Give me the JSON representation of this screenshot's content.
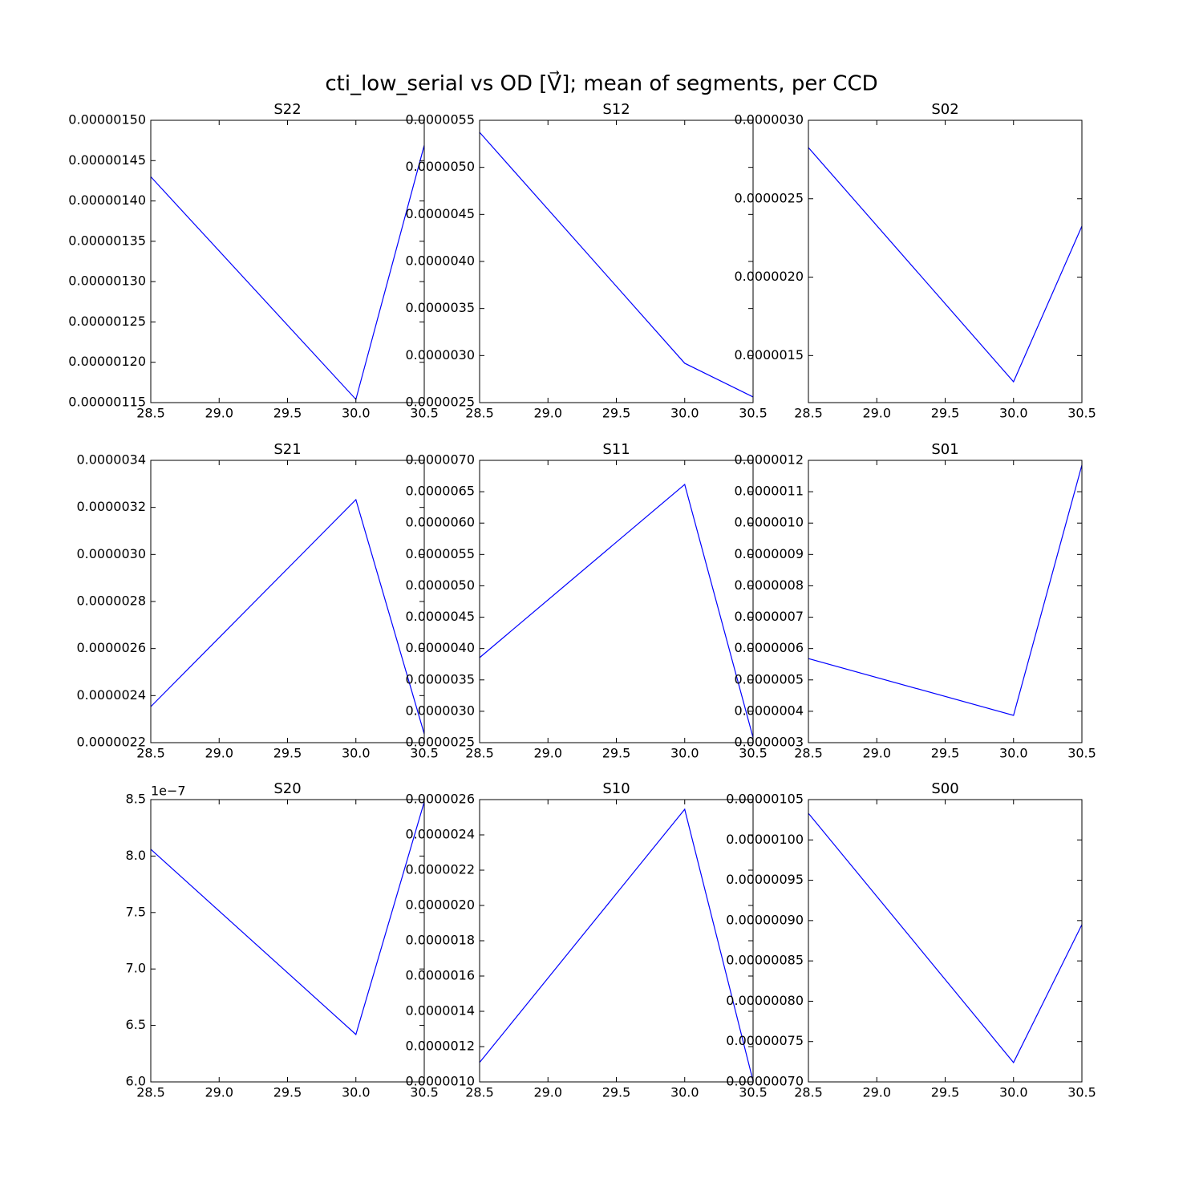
{
  "title": "cti_low_serial vs OD [V⃗]; mean of segments, per CCD",
  "chart_data": [
    {
      "type": "line",
      "title": "S22",
      "x": [
        28.5,
        30.0,
        30.5
      ],
      "series": [
        {
          "color": "#0000ff",
          "values": [
            1.43e-06,
            1.154e-06,
            1.469e-06
          ]
        }
      ],
      "xlim": [
        28.5,
        30.5
      ],
      "ylim": [
        1.15e-06,
        1.5e-06
      ],
      "xticks": [
        28.5,
        {
          "value": 29,
          "label": "29.0"
        },
        29.5,
        {
          "value": 30,
          "label": "30.0"
        },
        30.5
      ],
      "yticks": [
        {
          "value": 1.15e-06,
          "label": "0.00000115"
        },
        {
          "value": 1.2e-06,
          "label": "0.00000120"
        },
        {
          "value": 1.25e-06,
          "label": "0.00000125"
        },
        {
          "value": 1.3e-06,
          "label": "0.00000130"
        },
        {
          "value": 1.35e-06,
          "label": "0.00000135"
        },
        {
          "value": 1.4e-06,
          "label": "0.00000140"
        },
        {
          "value": 1.45e-06,
          "label": "0.00000145"
        },
        {
          "value": 1.5e-06,
          "label": "0.00000150"
        }
      ]
    },
    {
      "type": "line",
      "title": "S12",
      "x": [
        28.5,
        30.0,
        30.5
      ],
      "series": [
        {
          "color": "#0000ff",
          "values": [
            5.372e-06,
            2.918e-06,
            2.56e-06
          ]
        }
      ],
      "xlim": [
        28.5,
        30.5
      ],
      "ylim": [
        2.5e-06,
        5.5e-06
      ],
      "xticks": [
        28.5,
        {
          "value": 29,
          "label": "29.0"
        },
        29.5,
        {
          "value": 30,
          "label": "30.0"
        },
        30.5
      ],
      "yticks": [
        {
          "value": 2.5e-06,
          "label": "0.0000025"
        },
        {
          "value": 3e-06,
          "label": "0.0000030"
        },
        {
          "value": 3.5e-06,
          "label": "0.0000035"
        },
        {
          "value": 4e-06,
          "label": "0.0000040"
        },
        {
          "value": 4.5e-06,
          "label": "0.0000045"
        },
        {
          "value": 5e-06,
          "label": "0.0000050"
        },
        {
          "value": 5.5e-06,
          "label": "0.0000055"
        }
      ]
    },
    {
      "type": "line",
      "title": "S02",
      "x": [
        28.5,
        30.0,
        30.5
      ],
      "series": [
        {
          "color": "#0000ff",
          "values": [
            2.826e-06,
            1.333e-06,
            2.325e-06
          ]
        }
      ],
      "xlim": [
        28.5,
        30.5
      ],
      "ylim": [
        1.2e-06,
        3e-06
      ],
      "xticks": [
        28.5,
        {
          "value": 29,
          "label": "29.0"
        },
        29.5,
        {
          "value": 30,
          "label": "30.0"
        },
        30.5
      ],
      "yticks": [
        {
          "value": 1.5e-06,
          "label": "0.0000015"
        },
        {
          "value": 2e-06,
          "label": "0.0000020"
        },
        {
          "value": 2.5e-06,
          "label": "0.0000025"
        },
        {
          "value": 3e-06,
          "label": "0.0000030"
        }
      ]
    },
    {
      "type": "line",
      "title": "S21",
      "x": [
        28.5,
        30.0,
        30.5
      ],
      "series": [
        {
          "color": "#0000ff",
          "values": [
            2.353e-06,
            3.233e-06,
            2.237e-06
          ]
        }
      ],
      "xlim": [
        28.5,
        30.5
      ],
      "ylim": [
        2.2e-06,
        3.4e-06
      ],
      "xticks": [
        28.5,
        {
          "value": 29,
          "label": "29.0"
        },
        29.5,
        {
          "value": 30,
          "label": "30.0"
        },
        30.5
      ],
      "yticks": [
        {
          "value": 2.2e-06,
          "label": "0.0000022"
        },
        {
          "value": 2.4e-06,
          "label": "0.0000024"
        },
        {
          "value": 2.6e-06,
          "label": "0.0000026"
        },
        {
          "value": 2.8e-06,
          "label": "0.0000028"
        },
        {
          "value": 3e-06,
          "label": "0.0000030"
        },
        {
          "value": 3.2e-06,
          "label": "0.0000032"
        },
        {
          "value": 3.4e-06,
          "label": "0.0000034"
        }
      ]
    },
    {
      "type": "line",
      "title": "S11",
      "x": [
        28.5,
        30.0,
        30.5
      ],
      "series": [
        {
          "color": "#0000ff",
          "values": [
            3.855e-06,
            6.616e-06,
            2.58e-06
          ]
        }
      ],
      "xlim": [
        28.5,
        30.5
      ],
      "ylim": [
        2.5e-06,
        7e-06
      ],
      "xticks": [
        28.5,
        {
          "value": 29,
          "label": "29.0"
        },
        29.5,
        {
          "value": 30,
          "label": "30.0"
        },
        30.5
      ],
      "yticks": [
        {
          "value": 2.5e-06,
          "label": "0.0000025"
        },
        {
          "value": 3e-06,
          "label": "0.0000030"
        },
        {
          "value": 3.5e-06,
          "label": "0.0000035"
        },
        {
          "value": 4e-06,
          "label": "0.0000040"
        },
        {
          "value": 4.5e-06,
          "label": "0.0000045"
        },
        {
          "value": 5e-06,
          "label": "0.0000050"
        },
        {
          "value": 5.5e-06,
          "label": "0.0000055"
        },
        {
          "value": 6e-06,
          "label": "0.0000060"
        },
        {
          "value": 6.5e-06,
          "label": "0.0000065"
        },
        {
          "value": 7e-06,
          "label": "0.0000070"
        }
      ]
    },
    {
      "type": "line",
      "title": "S01",
      "x": [
        28.5,
        30.0,
        30.5
      ],
      "series": [
        {
          "color": "#0000ff",
          "values": [
            5.68e-07,
            3.87e-07,
            1.185e-06
          ]
        }
      ],
      "xlim": [
        28.5,
        30.5
      ],
      "ylim": [
        3e-07,
        1.2e-06
      ],
      "xticks": [
        28.5,
        {
          "value": 29,
          "label": "29.0"
        },
        29.5,
        {
          "value": 30,
          "label": "30.0"
        },
        30.5
      ],
      "yticks": [
        {
          "value": 3e-07,
          "label": "0.0000003"
        },
        {
          "value": 4e-07,
          "label": "0.0000004"
        },
        {
          "value": 5e-07,
          "label": "0.0000005"
        },
        {
          "value": 6e-07,
          "label": "0.0000006"
        },
        {
          "value": 7e-07,
          "label": "0.0000007"
        },
        {
          "value": 8e-07,
          "label": "0.0000008"
        },
        {
          "value": 9e-07,
          "label": "0.0000009"
        },
        {
          "value": 1e-06,
          "label": "0.0000010"
        },
        {
          "value": 1.1e-06,
          "label": "0.0000011"
        },
        {
          "value": 1.2e-06,
          "label": "0.0000012"
        }
      ]
    },
    {
      "type": "line",
      "title": "S20",
      "x": [
        28.5,
        30.0,
        30.5
      ],
      "offset_label": "1e−7",
      "series": [
        {
          "color": "#0000ff",
          "values": [
            8.06,
            6.42,
            8.48
          ]
        }
      ],
      "xlim": [
        28.5,
        30.5
      ],
      "ylim": [
        6,
        8.5
      ],
      "xticks": [
        28.5,
        {
          "value": 29,
          "label": "29.0"
        },
        29.5,
        {
          "value": 30,
          "label": "30.0"
        },
        30.5
      ],
      "yticks": [
        {
          "value": 6,
          "label": "6.0"
        },
        6.5,
        {
          "value": 7,
          "label": "7.0"
        },
        7.5,
        {
          "value": 8,
          "label": "8.0"
        },
        8.5
      ]
    },
    {
      "type": "line",
      "title": "S10",
      "x": [
        28.5,
        30.0,
        30.5
      ],
      "series": [
        {
          "color": "#0000ff",
          "values": [
            1.11e-06,
            2.545e-06,
            1.005e-06
          ]
        }
      ],
      "xlim": [
        28.5,
        30.5
      ],
      "ylim": [
        1e-06,
        2.6e-06
      ],
      "xticks": [
        28.5,
        {
          "value": 29,
          "label": "29.0"
        },
        29.5,
        {
          "value": 30,
          "label": "30.0"
        },
        30.5
      ],
      "yticks": [
        {
          "value": 1e-06,
          "label": "0.0000010"
        },
        {
          "value": 1.2e-06,
          "label": "0.0000012"
        },
        {
          "value": 1.4e-06,
          "label": "0.0000014"
        },
        {
          "value": 1.6e-06,
          "label": "0.0000016"
        },
        {
          "value": 1.8e-06,
          "label": "0.0000018"
        },
        {
          "value": 2e-06,
          "label": "0.0000020"
        },
        {
          "value": 2.2e-06,
          "label": "0.0000022"
        },
        {
          "value": 2.4e-06,
          "label": "0.0000024"
        },
        {
          "value": 2.6e-06,
          "label": "0.0000026"
        }
      ]
    },
    {
      "type": "line",
      "title": "S00",
      "x": [
        28.5,
        30.0,
        30.5
      ],
      "series": [
        {
          "color": "#0000ff",
          "values": [
            1.033e-06,
            7.24e-07,
            8.95e-07
          ]
        }
      ],
      "xlim": [
        28.5,
        30.5
      ],
      "ylim": [
        7e-07,
        1.05e-06
      ],
      "xticks": [
        28.5,
        {
          "value": 29,
          "label": "29.0"
        },
        29.5,
        {
          "value": 30,
          "label": "30.0"
        },
        30.5
      ],
      "yticks": [
        {
          "value": 7e-07,
          "label": "0.00000070"
        },
        {
          "value": 7.5e-07,
          "label": "0.00000075"
        },
        {
          "value": 8e-07,
          "label": "0.00000080"
        },
        {
          "value": 8.5e-07,
          "label": "0.00000085"
        },
        {
          "value": 9e-07,
          "label": "0.00000090"
        },
        {
          "value": 9.5e-07,
          "label": "0.00000095"
        },
        {
          "value": 1e-06,
          "label": "0.00000100"
        },
        {
          "value": 1.05e-06,
          "label": "0.00000105"
        }
      ]
    }
  ]
}
